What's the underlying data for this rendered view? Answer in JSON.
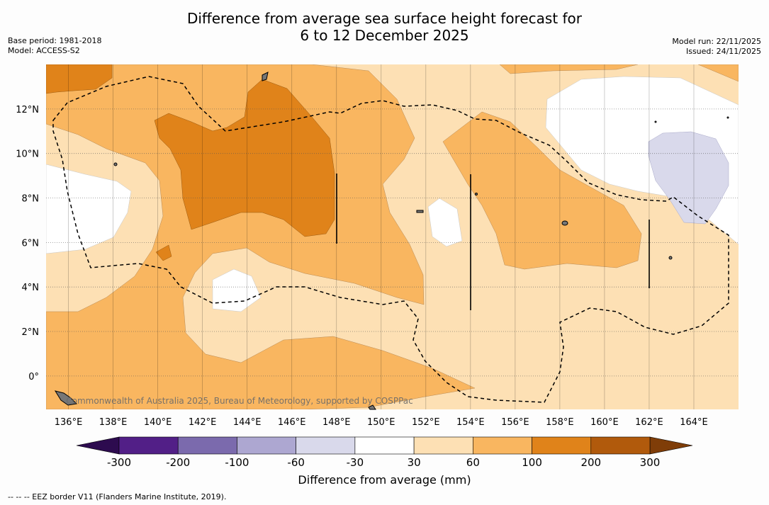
{
  "title": {
    "line1": "Difference from average sea surface height forecast for",
    "line2": "6 to 12 December 2025"
  },
  "meta_left": {
    "base_period": "Base period: 1981-2018",
    "model": "Model: ACCESS-S2"
  },
  "meta_right": {
    "model_run": "Model run: 22/11/2025",
    "issued": "Issued: 24/11/2025"
  },
  "map": {
    "lon_range": [
      135,
      166
    ],
    "lat_range": [
      -1.5,
      14
    ],
    "lon_ticks": [
      "136°E",
      "138°E",
      "140°E",
      "142°E",
      "144°E",
      "146°E",
      "148°E",
      "150°E",
      "152°E",
      "154°E",
      "156°E",
      "158°E",
      "160°E",
      "162°E",
      "164°E"
    ],
    "lat_ticks": [
      "12°N",
      "10°N",
      "8°N",
      "6°N",
      "4°N",
      "2°N",
      "0°"
    ],
    "watermark": "Commonwealth of Australia 2025, Bureau of Meteorology, supported by COSPPac"
  },
  "colorbar": {
    "boundaries": [
      "-300",
      "-200",
      "-100",
      "-60",
      "-30",
      "30",
      "60",
      "100",
      "200",
      "300"
    ],
    "colors": [
      "#521f87",
      "#7b6aad",
      "#ada7d1",
      "#d9d9eb",
      "#ffffff",
      "#fde0b4",
      "#f9b660",
      "#e0831a",
      "#b15a0c"
    ],
    "extend_min_color": "#2d0b4f",
    "extend_max_color": "#7f3d08",
    "label": "Difference from average (mm)"
  },
  "footer": "--  --  -- EEZ border V11 (Flanders Marine Institute, 2019)."
}
